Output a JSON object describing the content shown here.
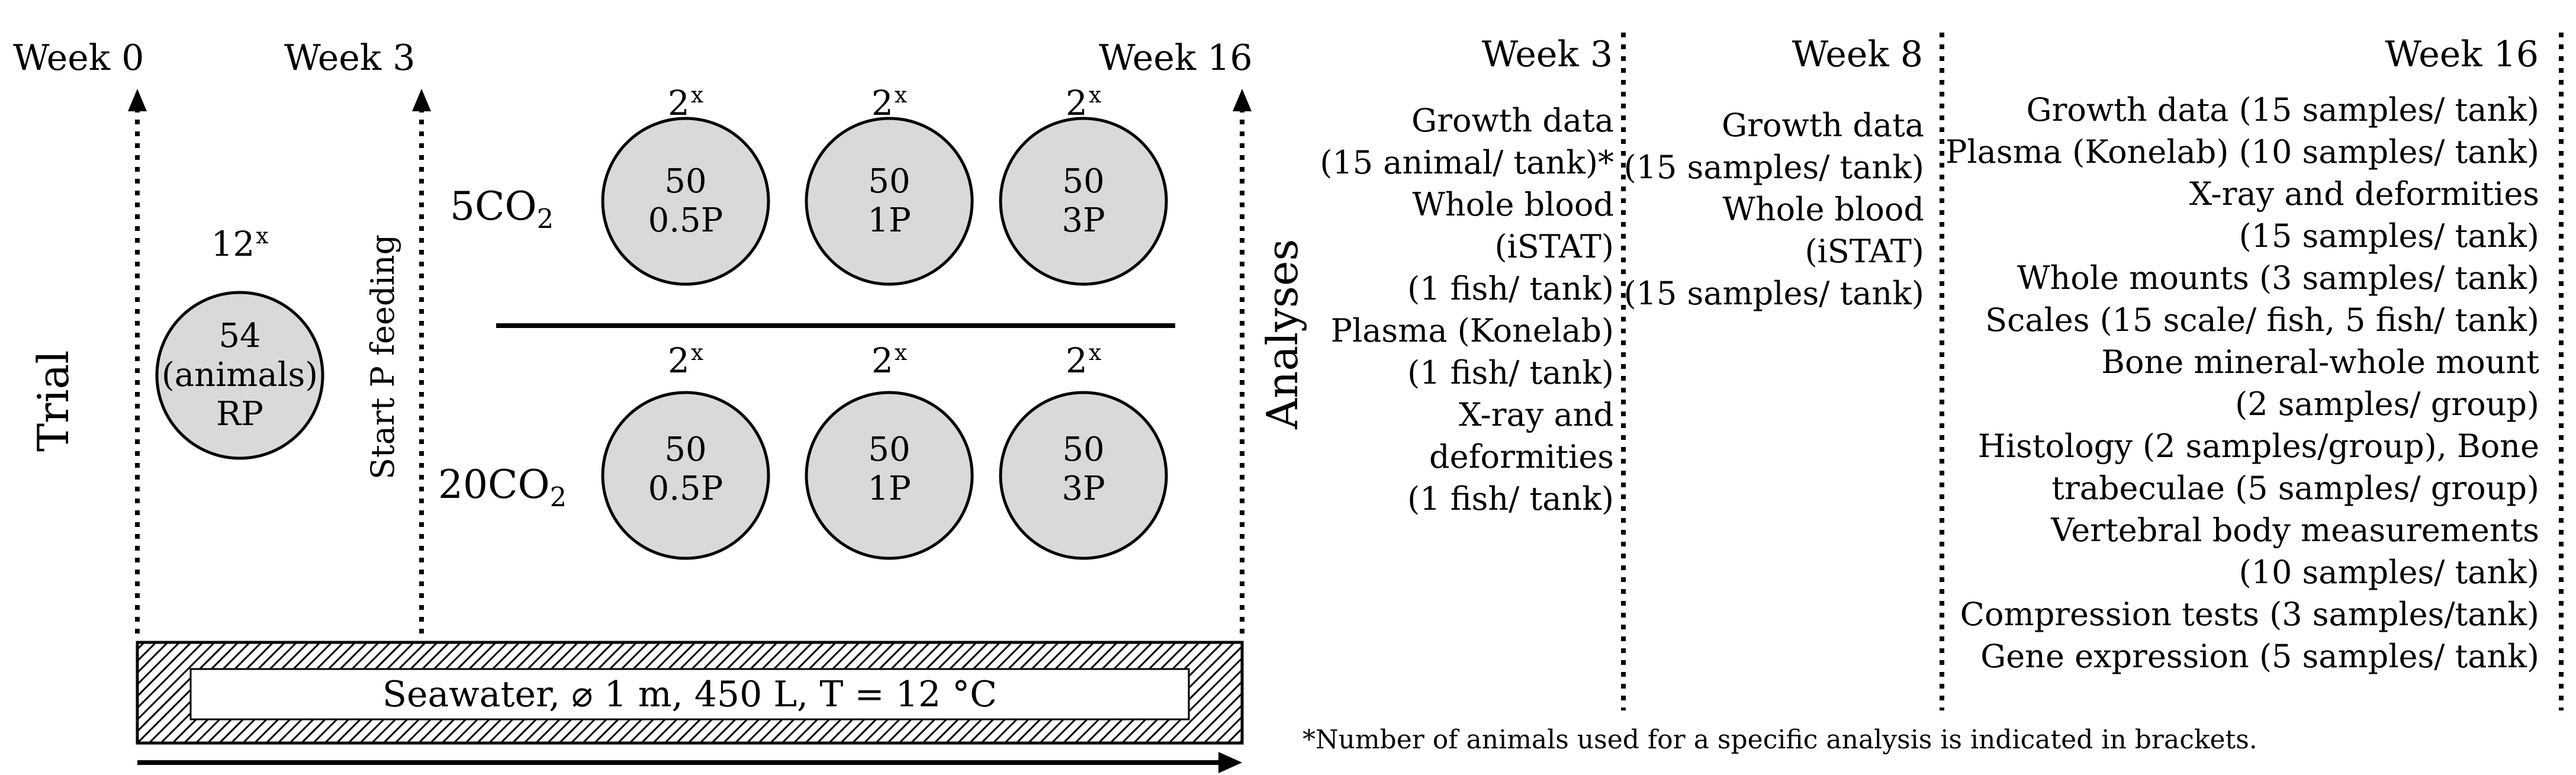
{
  "timeline": {
    "week0": "Week 0",
    "week3": "Week 3",
    "week16": "Week 16",
    "start_feeding": "Start P feeding",
    "trial": "Trial",
    "seawater": "Seawater, ⌀ 1 m, 450 L, T = 12 °C"
  },
  "initial_group": {
    "multiplier_base": "12",
    "multiplier_sup": "x",
    "count": "54",
    "unit": "(animals)",
    "diet": "RP"
  },
  "co2_rows": [
    {
      "label_base": "5CO",
      "label_sub": "2",
      "tanks": [
        {
          "multiplier_base": "2",
          "multiplier_sup": "x",
          "count": "50",
          "diet": "0.5P"
        },
        {
          "multiplier_base": "2",
          "multiplier_sup": "x",
          "count": "50",
          "diet": "1P"
        },
        {
          "multiplier_base": "2",
          "multiplier_sup": "x",
          "count": "50",
          "diet": "3P"
        }
      ]
    },
    {
      "label_base": "20CO",
      "label_sub": "2",
      "tanks": [
        {
          "multiplier_base": "2",
          "multiplier_sup": "x",
          "count": "50",
          "diet": "0.5P"
        },
        {
          "multiplier_base": "2",
          "multiplier_sup": "x",
          "count": "50",
          "diet": "1P"
        },
        {
          "multiplier_base": "2",
          "multiplier_sup": "x",
          "count": "50",
          "diet": "3P"
        }
      ]
    }
  ],
  "analyses": {
    "title": "Analyses",
    "week3": {
      "header": "Week 3",
      "lines": [
        "Growth data",
        "(15 animal/ tank)*",
        "Whole blood",
        "(iSTAT)",
        "(1 fish/ tank)",
        "Plasma (Konelab)",
        "(1 fish/ tank)",
        "X-ray and",
        "deformities",
        "(1 fish/ tank)"
      ]
    },
    "week8": {
      "header": "Week 8",
      "lines": [
        "Growth data",
        "(15 samples/ tank)",
        "Whole blood",
        "(iSTAT)",
        "(15 samples/ tank)"
      ]
    },
    "week16": {
      "header": "Week 16",
      "lines": [
        "Growth data (15 samples/ tank)",
        "Plasma (Konelab) (10 samples/ tank)",
        "X-ray and deformities",
        "(15 samples/ tank)",
        "Whole mounts (3 samples/ tank)",
        "Scales (15 scale/ fish, 5 fish/ tank)",
        "Bone mineral-whole mount",
        "(2 samples/ group)",
        "Histology (2 samples/group), Bone",
        "trabeculae (5 samples/ group)",
        "Vertebral body measurements",
        "(10 samples/ tank)",
        "Compression tests (3 samples/tank)",
        "Gene expression (5 samples/ tank)"
      ]
    },
    "footnote": "*Number of animals used for a specific analysis is indicated in brackets."
  },
  "colors": {
    "circle_fill": "#d9d9d9",
    "stroke": "#000000",
    "background": "#ffffff"
  }
}
